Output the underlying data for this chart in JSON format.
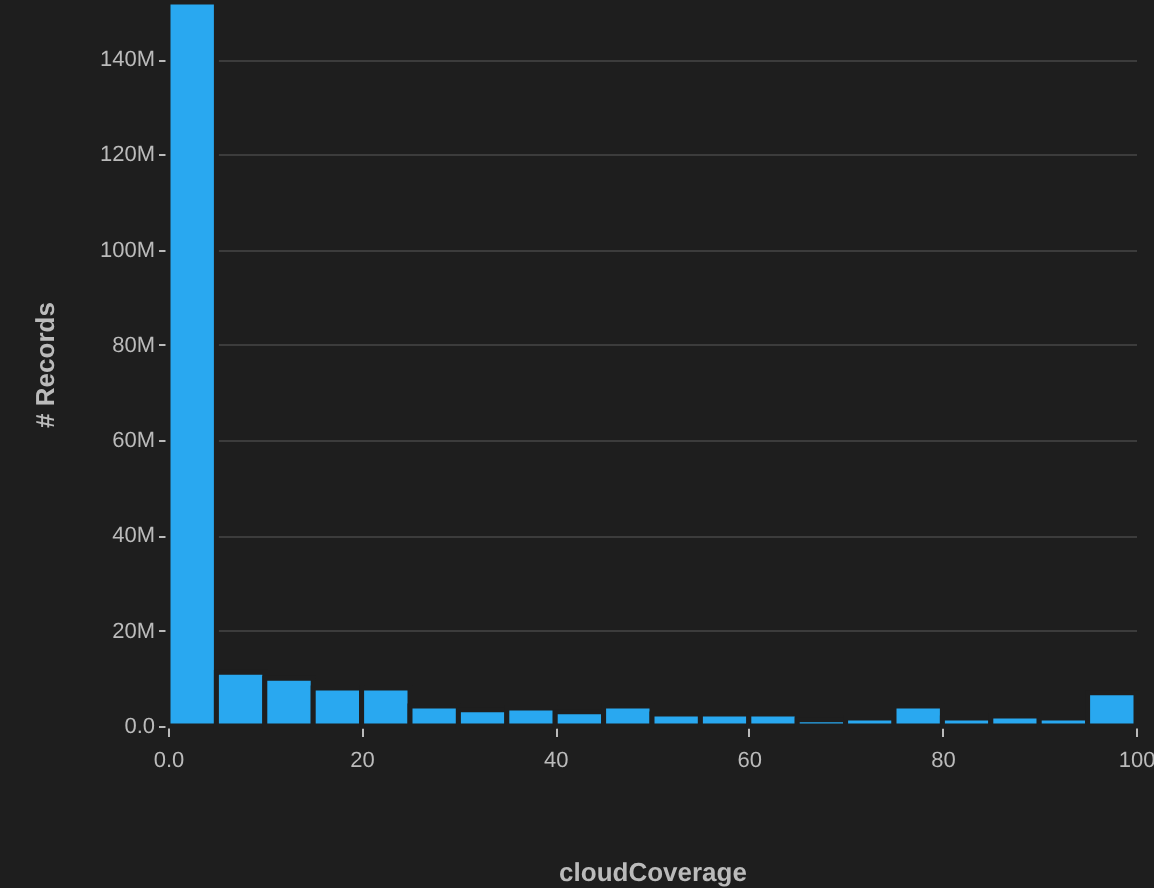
{
  "chart_data": {
    "type": "histogram",
    "xlabel": "cloudCoverage",
    "ylabel": "# Records",
    "color": "#29a8f0",
    "bins": [
      0,
      5,
      10,
      15,
      20,
      25,
      30,
      35,
      40,
      45,
      50,
      55,
      60,
      65,
      70,
      75,
      80,
      85,
      90,
      95,
      100
    ],
    "values": [
      152000000,
      11300000,
      10000000,
      8000000,
      8000000,
      4200000,
      3400000,
      3800000,
      3000000,
      4200000,
      2500000,
      2500000,
      2500000,
      1300000,
      1700000,
      4200000,
      1700000,
      2100000,
      1700000,
      7000000
    ],
    "xlim": [
      0,
      100
    ],
    "xticks": [
      {
        "value": 0,
        "label": "0.0"
      },
      20,
      40,
      60,
      80,
      100
    ],
    "ylim": [
      0,
      152000000
    ],
    "yticks": [
      {
        "value": 0,
        "label": "0.0"
      },
      {
        "value": 20000000,
        "label": "20M"
      },
      {
        "value": 40000000,
        "label": "40M"
      },
      {
        "value": 60000000,
        "label": "60M"
      },
      {
        "value": 80000000,
        "label": "80M"
      },
      {
        "value": 100000000,
        "label": "100M"
      },
      {
        "value": 120000000,
        "label": "120M"
      },
      {
        "value": 140000000,
        "label": "140M"
      }
    ],
    "grid": "y"
  }
}
